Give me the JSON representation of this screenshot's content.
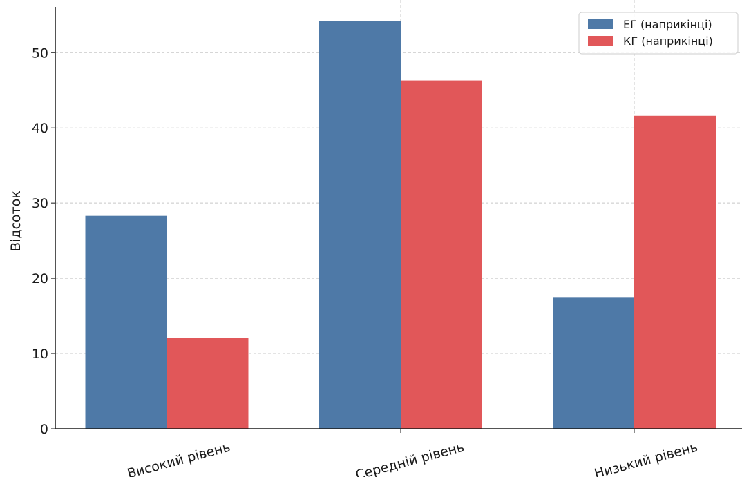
{
  "chart_data": {
    "type": "bar",
    "title": "",
    "xlabel": "",
    "ylabel": "Відсоток",
    "categories": [
      "Високий рівень",
      "Середній рівень",
      "Низький рівень"
    ],
    "series": [
      {
        "name": "ЕГ (наприкінці)",
        "values": [
          28.3,
          54.2,
          17.5
        ],
        "color": "#4e79a7"
      },
      {
        "name": "КГ (наприкінці)",
        "values": [
          12.1,
          46.3,
          41.6
        ],
        "color": "#e15759"
      }
    ],
    "ylim": [
      0,
      57
    ],
    "yticks": [
      0,
      10,
      20,
      30,
      40,
      50
    ],
    "grid": true,
    "legend": "top-right"
  }
}
